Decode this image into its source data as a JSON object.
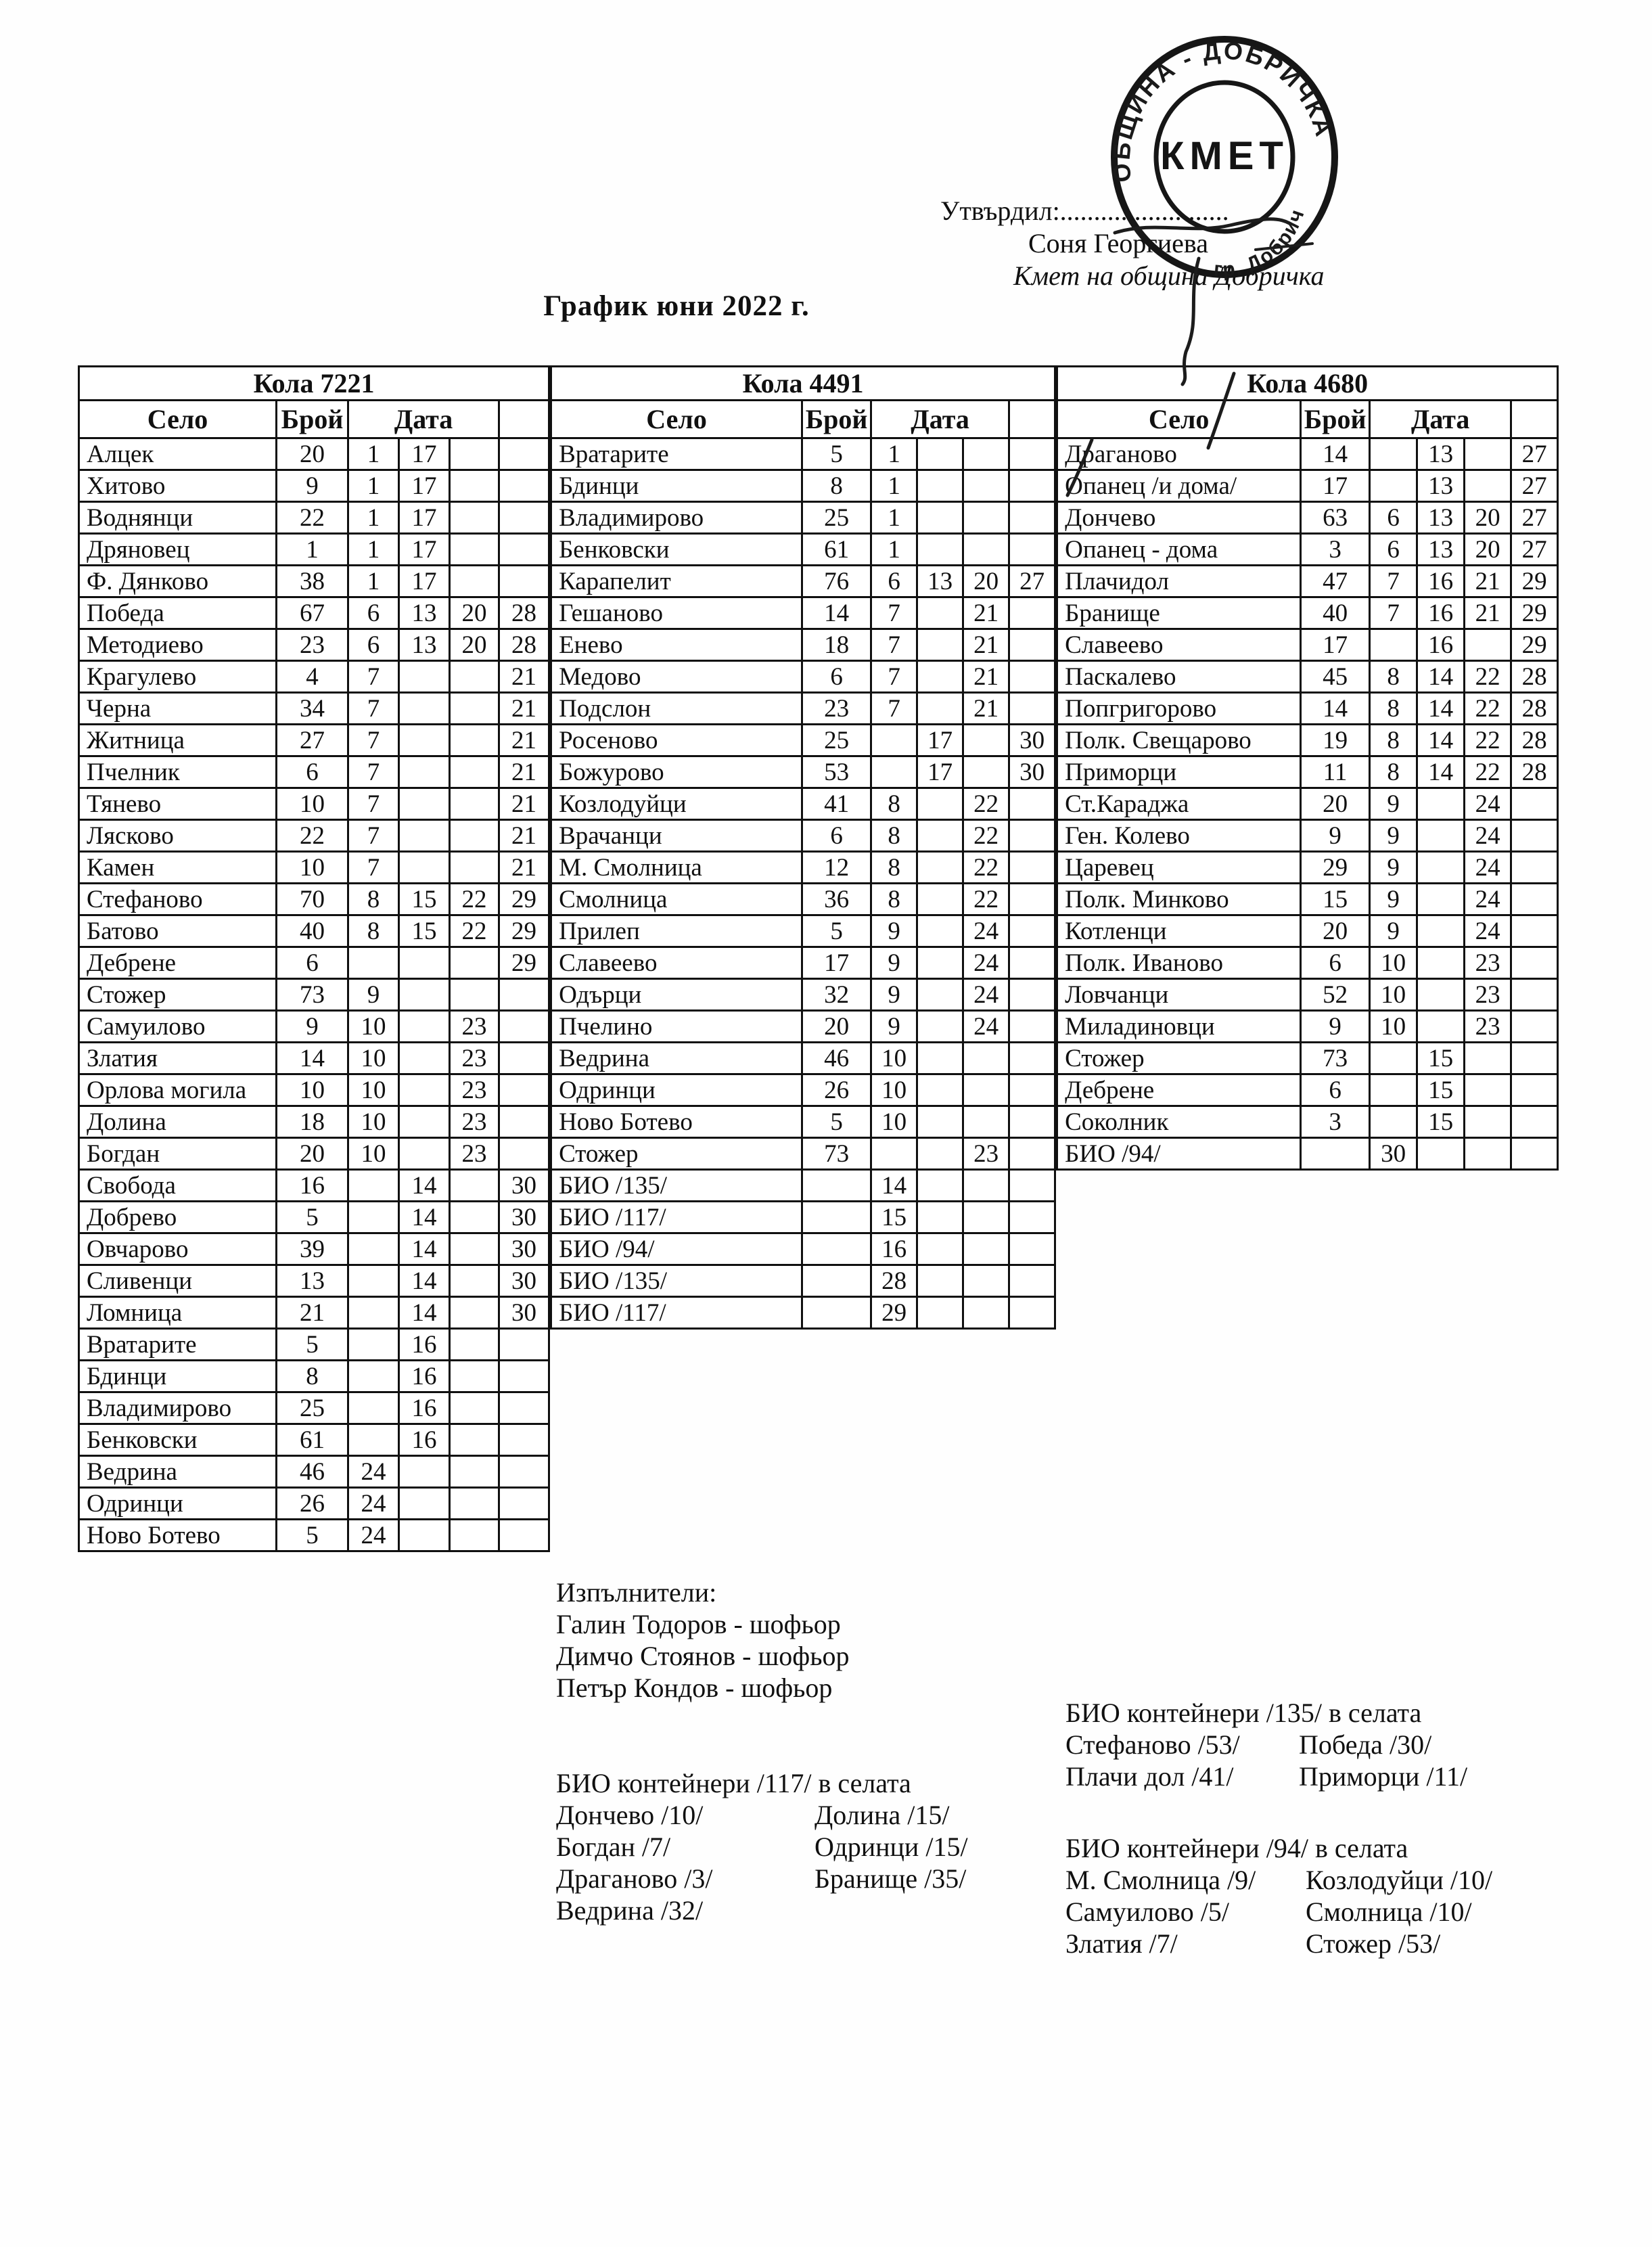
{
  "doc_title": "График юни 2022 г.",
  "approval": {
    "label": "Утвърдил:.........................",
    "name": "Соня Георгиева",
    "position": "Кмет  на община Добричка"
  },
  "stamp": {
    "ring_top": "ОБЩИНА - ДОБРИЧКА",
    "ring_side": "гр. Добрич",
    "center": "КМЕТ"
  },
  "columns": {
    "village": "Село",
    "count": "Брой",
    "date": "Дата"
  },
  "tables": [
    {
      "car": "Кола 7221",
      "rows": [
        [
          "Алцек",
          "20",
          "1",
          "17",
          "",
          ""
        ],
        [
          "Хитово",
          "9",
          "1",
          "17",
          "",
          ""
        ],
        [
          "Воднянци",
          "22",
          "1",
          "17",
          "",
          ""
        ],
        [
          "Дряновец",
          "1",
          "1",
          "17",
          "",
          ""
        ],
        [
          "Ф. Дянково",
          "38",
          "1",
          "17",
          "",
          ""
        ],
        [
          "Победа",
          "67",
          "6",
          "13",
          "20",
          "28"
        ],
        [
          "Методиево",
          "23",
          "6",
          "13",
          "20",
          "28"
        ],
        [
          "Крагулево",
          "4",
          "7",
          "",
          "",
          "21"
        ],
        [
          "Черна",
          "34",
          "7",
          "",
          "",
          "21"
        ],
        [
          "Житница",
          "27",
          "7",
          "",
          "",
          "21"
        ],
        [
          "Пчелник",
          "6",
          "7",
          "",
          "",
          "21"
        ],
        [
          "Тянево",
          "10",
          "7",
          "",
          "",
          "21"
        ],
        [
          "Лясково",
          "22",
          "7",
          "",
          "",
          "21"
        ],
        [
          "Камен",
          "10",
          "7",
          "",
          "",
          "21"
        ],
        [
          "Стефаново",
          "70",
          "8",
          "15",
          "22",
          "29"
        ],
        [
          "Батово",
          "40",
          "8",
          "15",
          "22",
          "29"
        ],
        [
          "Дебрене",
          "6",
          "",
          "",
          "",
          "29"
        ],
        [
          "Стожер",
          "73",
          "9",
          "",
          "",
          ""
        ],
        [
          "Самуилово",
          "9",
          "10",
          "",
          "23",
          ""
        ],
        [
          "Златия",
          "14",
          "10",
          "",
          "23",
          ""
        ],
        [
          "Орлова могила",
          "10",
          "10",
          "",
          "23",
          ""
        ],
        [
          "Долина",
          "18",
          "10",
          "",
          "23",
          ""
        ],
        [
          "Богдан",
          "20",
          "10",
          "",
          "23",
          ""
        ],
        [
          "Свобода",
          "16",
          "",
          "14",
          "",
          "30"
        ],
        [
          "Добрево",
          "5",
          "",
          "14",
          "",
          "30"
        ],
        [
          "Овчарово",
          "39",
          "",
          "14",
          "",
          "30"
        ],
        [
          "Сливенци",
          "13",
          "",
          "14",
          "",
          "30"
        ],
        [
          "Ломница",
          "21",
          "",
          "14",
          "",
          "30"
        ],
        [
          "Вратарите",
          "5",
          "",
          "16",
          "",
          ""
        ],
        [
          "Бдинци",
          "8",
          "",
          "16",
          "",
          ""
        ],
        [
          "Владимирово",
          "25",
          "",
          "16",
          "",
          ""
        ],
        [
          "Бенковски",
          "61",
          "",
          "16",
          "",
          ""
        ],
        [
          "Ведрина",
          "46",
          "24",
          "",
          "",
          ""
        ],
        [
          "Одринци",
          "26",
          "24",
          "",
          "",
          ""
        ],
        [
          "Ново Ботево",
          "5",
          "24",
          "",
          "",
          ""
        ]
      ]
    },
    {
      "car": "Кола 4491",
      "rows": [
        [
          "Вратарите",
          "5",
          "1",
          "",
          "",
          ""
        ],
        [
          "Бдинци",
          "8",
          "1",
          "",
          "",
          ""
        ],
        [
          "Владимирово",
          "25",
          "1",
          "",
          "",
          ""
        ],
        [
          "Бенковски",
          "61",
          "1",
          "",
          "",
          ""
        ],
        [
          "Карапелит",
          "76",
          "6",
          "13",
          "20",
          "27"
        ],
        [
          "Гешаново",
          "14",
          "7",
          "",
          "21",
          ""
        ],
        [
          "Енево",
          "18",
          "7",
          "",
          "21",
          ""
        ],
        [
          "Медово",
          "6",
          "7",
          "",
          "21",
          ""
        ],
        [
          "Подслон",
          "23",
          "7",
          "",
          "21",
          ""
        ],
        [
          "Росеново",
          "25",
          "",
          "17",
          "",
          "30"
        ],
        [
          "Божурово",
          "53",
          "",
          "17",
          "",
          "30"
        ],
        [
          "Козлодуйци",
          "41",
          "8",
          "",
          "22",
          ""
        ],
        [
          "Врачанци",
          "6",
          "8",
          "",
          "22",
          ""
        ],
        [
          "М. Смолница",
          "12",
          "8",
          "",
          "22",
          ""
        ],
        [
          "Смолница",
          "36",
          "8",
          "",
          "22",
          ""
        ],
        [
          "Прилеп",
          "5",
          "9",
          "",
          "24",
          ""
        ],
        [
          "Славеево",
          "17",
          "9",
          "",
          "24",
          ""
        ],
        [
          "Одърци",
          "32",
          "9",
          "",
          "24",
          ""
        ],
        [
          "Пчелино",
          "20",
          "9",
          "",
          "24",
          ""
        ],
        [
          "Ведрина",
          "46",
          "10",
          "",
          "",
          ""
        ],
        [
          "Одринци",
          "26",
          "10",
          "",
          "",
          ""
        ],
        [
          "Ново Ботево",
          "5",
          "10",
          "",
          "",
          ""
        ],
        [
          "Стожер",
          "73",
          "",
          "",
          "23",
          ""
        ],
        [
          "БИО /135/",
          "",
          "14",
          "",
          "",
          ""
        ],
        [
          "БИО /117/",
          "",
          "15",
          "",
          "",
          ""
        ],
        [
          "БИО /94/",
          "",
          "16",
          "",
          "",
          ""
        ],
        [
          "БИО /135/",
          "",
          "28",
          "",
          "",
          ""
        ],
        [
          "БИО /117/",
          "",
          "29",
          "",
          "",
          ""
        ]
      ]
    },
    {
      "car": "Кола 4680",
      "rows": [
        [
          "Драганово",
          "14",
          "",
          "13",
          "",
          "27"
        ],
        [
          "Опанец /и дома/",
          "17",
          "",
          "13",
          "",
          "27"
        ],
        [
          "Дончево",
          "63",
          "6",
          "13",
          "20",
          "27"
        ],
        [
          "Опанец - дома",
          "3",
          "6",
          "13",
          "20",
          "27"
        ],
        [
          "Плачидол",
          "47",
          "7",
          "16",
          "21",
          "29"
        ],
        [
          "Бранище",
          "40",
          "7",
          "16",
          "21",
          "29"
        ],
        [
          "Славеево",
          "17",
          "",
          "16",
          "",
          "29"
        ],
        [
          "Паскалево",
          "45",
          "8",
          "14",
          "22",
          "28"
        ],
        [
          "Попгригорово",
          "14",
          "8",
          "14",
          "22",
          "28"
        ],
        [
          "Полк. Свещарово",
          "19",
          "8",
          "14",
          "22",
          "28"
        ],
        [
          "Приморци",
          "11",
          "8",
          "14",
          "22",
          "28"
        ],
        [
          "Ст.Караджа",
          "20",
          "9",
          "",
          "24",
          ""
        ],
        [
          "Ген. Колево",
          "9",
          "9",
          "",
          "24",
          ""
        ],
        [
          "Царевец",
          "29",
          "9",
          "",
          "24",
          ""
        ],
        [
          "Полк. Минково",
          "15",
          "9",
          "",
          "24",
          ""
        ],
        [
          "Котленци",
          "20",
          "9",
          "",
          "24",
          ""
        ],
        [
          "Полк. Иваново",
          "6",
          "10",
          "",
          "23",
          ""
        ],
        [
          "Ловчанци",
          "52",
          "10",
          "",
          "23",
          ""
        ],
        [
          "Миладиновци",
          "9",
          "10",
          "",
          "23",
          ""
        ],
        [
          "Стожер",
          "73",
          "",
          "15",
          "",
          ""
        ],
        [
          "Дебрене",
          "6",
          "",
          "15",
          "",
          ""
        ],
        [
          "Соколник",
          "3",
          "",
          "15",
          "",
          ""
        ],
        [
          "БИО /94/",
          "",
          "30",
          "",
          "",
          ""
        ]
      ]
    }
  ],
  "executors": {
    "title": "Изпълнители:",
    "names": [
      "Галин Тодоров - шофьор",
      "Димчо Стоянов - шофьор",
      "Петър Кондов - шофьор"
    ]
  },
  "bio_blocks": [
    {
      "title": "БИО контейнери /117/ в селата",
      "left": [
        "Дончево /10/",
        "Богдан /7/",
        "Драганово /3/",
        "Ведрина /32/"
      ],
      "right": [
        "Долина /15/",
        "Одринци /15/",
        "Бранище /35/"
      ]
    },
    {
      "title": "БИО контейнери /135/ в селата",
      "left": [
        "Стефаново /53/",
        "Плачи дол /41/"
      ],
      "right": [
        "Победа /30/",
        "Приморци /11/"
      ]
    },
    {
      "title": "БИО контейнери /94/ в селата",
      "left": [
        "М. Смолница /9/",
        "Самуилово /5/",
        "Златия /7/"
      ],
      "right": [
        "Козлодуйци /10/",
        "Смолница /10/",
        "Стожер /53/"
      ]
    }
  ]
}
